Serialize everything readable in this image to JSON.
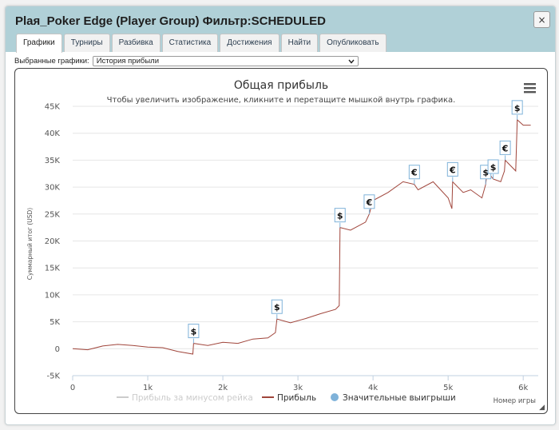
{
  "window": {
    "title": "Plaя_Poker Edge (Player Group) Фильтр:SCHEDULED",
    "close_label": "×"
  },
  "tabs": [
    {
      "label": "Графики",
      "active": true
    },
    {
      "label": "Турниры",
      "active": false
    },
    {
      "label": "Разбивка",
      "active": false
    },
    {
      "label": "Статистика",
      "active": false
    },
    {
      "label": "Достижения",
      "active": false
    },
    {
      "label": "Найти",
      "active": false
    },
    {
      "label": "Опубликовать",
      "active": false
    }
  ],
  "selector": {
    "label": "Выбранные графики:",
    "value": "История прибыли"
  },
  "chart_data": {
    "type": "line",
    "title": "Общая прибыль",
    "subtitle": "Чтобы увеличить изображение, кликните и перетащите мышкой внутрь графика.",
    "xlabel": "Номер игры",
    "ylabel": "Суммарный итог (USD)",
    "xlim": [
      0,
      6200
    ],
    "ylim": [
      -5000,
      45000
    ],
    "x_ticks": [
      0,
      1000,
      2000,
      3000,
      4000,
      5000,
      6000
    ],
    "x_tick_labels": [
      "0",
      "1k",
      "2k",
      "3k",
      "4k",
      "5k",
      "6k"
    ],
    "y_ticks": [
      -5000,
      0,
      5000,
      10000,
      15000,
      20000,
      25000,
      30000,
      35000,
      40000,
      45000
    ],
    "y_tick_labels": [
      "-5K",
      "0",
      "5K",
      "10K",
      "15K",
      "20K",
      "25K",
      "30K",
      "35K",
      "40K",
      "45K"
    ],
    "grid": "horizontal",
    "legend_position": "bottom",
    "series": [
      {
        "name": "Прибыль за минусом рейка",
        "color": "#cccccc",
        "visible": false
      },
      {
        "name": "Прибыль",
        "color": "#a0453b",
        "visible": true,
        "x": [
          0,
          200,
          400,
          600,
          800,
          1000,
          1200,
          1400,
          1600,
          1610,
          1800,
          2000,
          2200,
          2400,
          2600,
          2700,
          2720,
          2900,
          3100,
          3300,
          3500,
          3550,
          3560,
          3700,
          3900,
          3950,
          4000,
          4200,
          4400,
          4550,
          4600,
          4800,
          5000,
          5050,
          5060,
          5200,
          5300,
          5450,
          5500,
          5520,
          5600,
          5700,
          5750,
          5760,
          5900,
          5920,
          6000,
          6100
        ],
        "y": [
          0,
          -200,
          500,
          800,
          600,
          300,
          200,
          -500,
          -1000,
          1000,
          600,
          1200,
          1000,
          1800,
          2000,
          3000,
          5500,
          4800,
          5600,
          6500,
          7300,
          8000,
          22500,
          22000,
          23500,
          25000,
          27500,
          29000,
          31000,
          30500,
          29500,
          31000,
          28000,
          26000,
          31000,
          29000,
          29500,
          28000,
          30500,
          33000,
          31500,
          31000,
          33000,
          35000,
          33000,
          42500,
          41500,
          41500
        ]
      }
    ],
    "significant_wins_name": "Значительные выигрыши",
    "significant_wins_color": "#7fb2d9",
    "significant_wins": [
      {
        "x": 1610,
        "y": 1000,
        "symbol": "$"
      },
      {
        "x": 2720,
        "y": 5500,
        "symbol": "$"
      },
      {
        "x": 3560,
        "y": 22500,
        "symbol": "$"
      },
      {
        "x": 3950,
        "y": 25000,
        "symbol": "€"
      },
      {
        "x": 4550,
        "y": 30500,
        "symbol": "€"
      },
      {
        "x": 5060,
        "y": 31000,
        "symbol": "€"
      },
      {
        "x": 5500,
        "y": 30500,
        "symbol": "$"
      },
      {
        "x": 5600,
        "y": 31500,
        "symbol": "$"
      },
      {
        "x": 5760,
        "y": 35000,
        "symbol": "€"
      },
      {
        "x": 5920,
        "y": 42500,
        "symbol": "$"
      }
    ]
  }
}
